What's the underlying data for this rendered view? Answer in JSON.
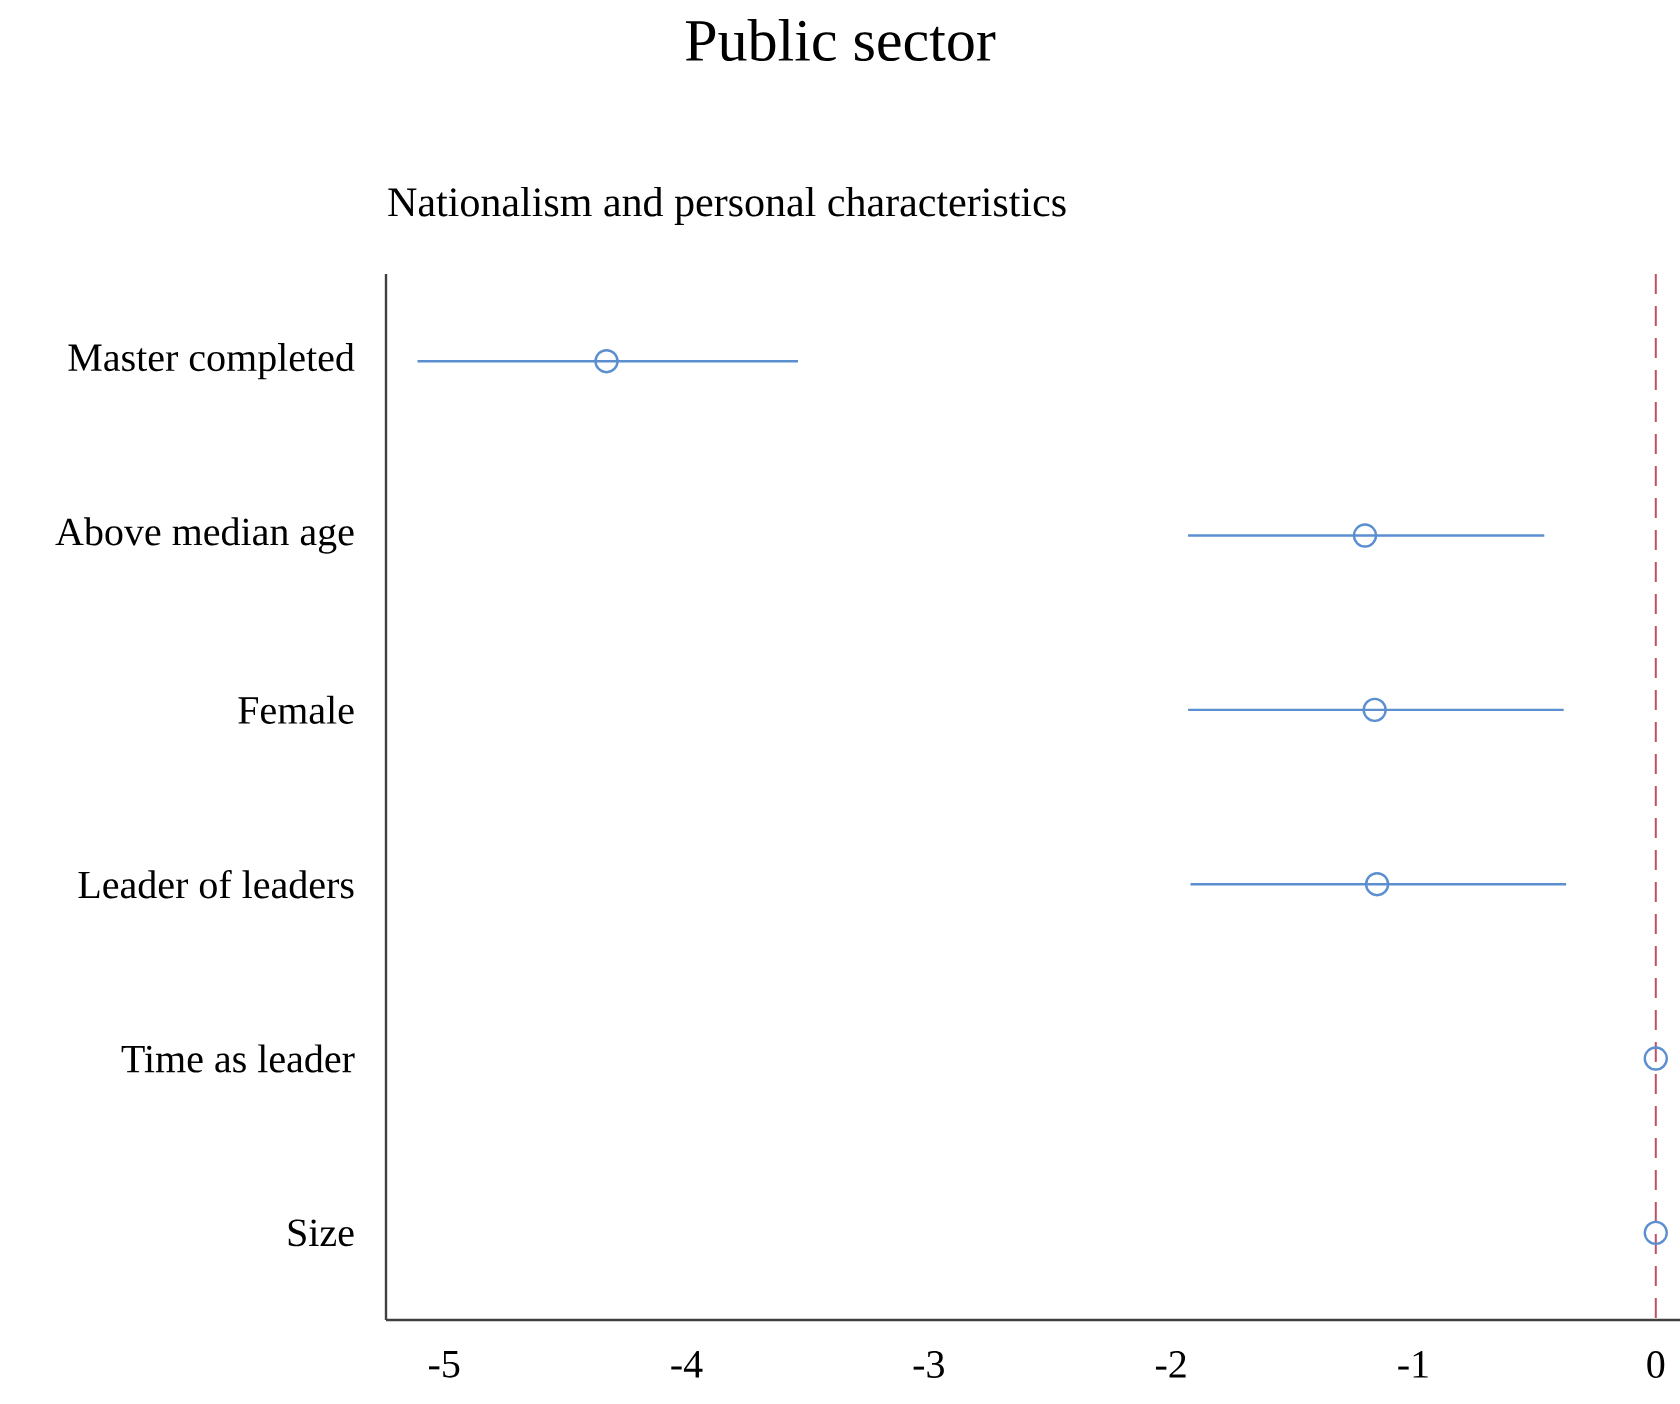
{
  "chart_data": {
    "type": "scatter",
    "orientation": "horizontal",
    "title": "Public sector",
    "subtitle": "Nationalism and personal characteristics",
    "categories": [
      "Master completed",
      "Above median age",
      "Female",
      "Leader of leaders",
      "Time as leader",
      "Size"
    ],
    "values": [
      -4.33,
      -1.2,
      -1.16,
      -1.15,
      0,
      0
    ],
    "errors": [
      [
        -5.11,
        -3.54
      ],
      [
        -1.93,
        -0.46
      ],
      [
        -1.93,
        -0.38
      ],
      [
        -1.92,
        -0.37
      ],
      null,
      null
    ],
    "color": "#5b8fcf",
    "marker": "circle",
    "xlim": [
      -5.24,
      0.1
    ],
    "xticks": [
      -5,
      -4,
      -3,
      -2,
      -1,
      0
    ],
    "ref_lines": [
      {
        "axis": "x",
        "value": 0,
        "color": "#c0506a",
        "line_style": "dashed"
      }
    ]
  }
}
